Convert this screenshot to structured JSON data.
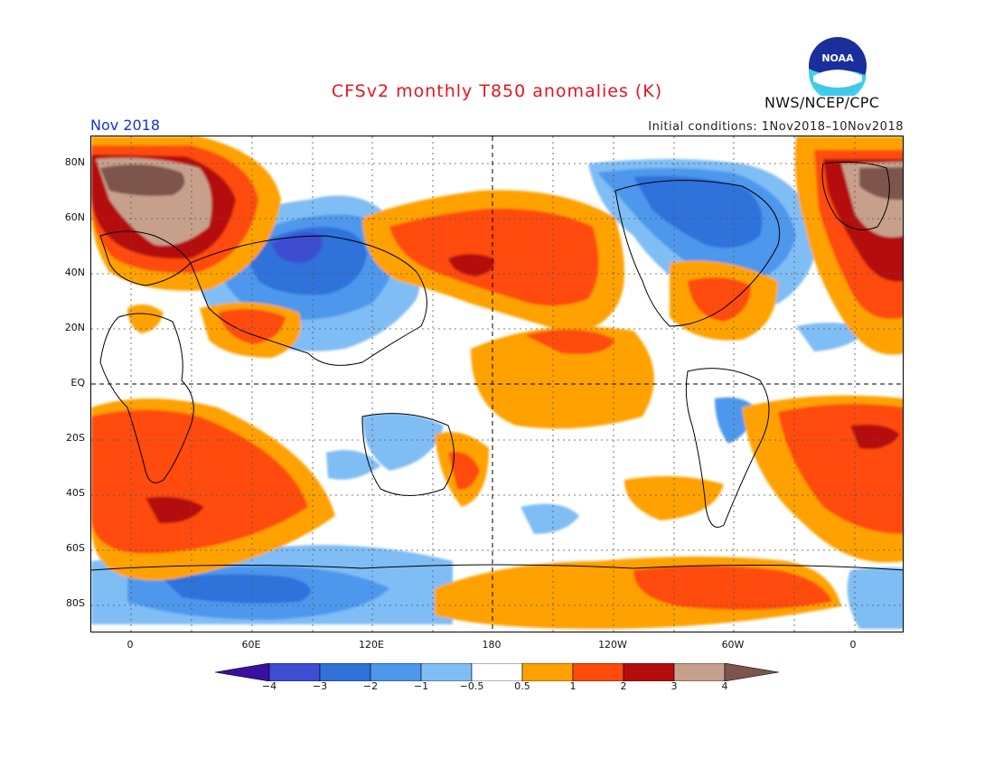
{
  "header": {
    "title": "CFSv2 monthly T850 anomalies (K)",
    "month": "Nov 2018",
    "initial_conditions": "Initial conditions: 1Nov2018–10Nov2018",
    "agency": "NWS/NCEP/CPC",
    "logo_text": "NOAA"
  },
  "map": {
    "projection": "cylindrical",
    "lon_range": [
      -20,
      380
    ],
    "lat_range": [
      -90,
      90
    ],
    "lat_labels": [
      "80N",
      "60N",
      "40N",
      "20N",
      "EQ",
      "20S",
      "40S",
      "60S",
      "80S"
    ],
    "lon_labels": [
      "0",
      "60E",
      "120E",
      "180",
      "120W",
      "60W",
      "0"
    ],
    "grid": "dotted, 30-degree spacing",
    "reference_lines": [
      "Equator",
      "180"
    ]
  },
  "colorbar": {
    "labels": [
      "−4",
      "−3",
      "−2",
      "−1",
      "−0.5",
      "0.5",
      "1",
      "2",
      "3",
      "4"
    ],
    "colors": [
      "#3a10a0",
      "#3e4ed2",
      "#2f72da",
      "#4d98ec",
      "#7fbdf5",
      "#ffffff",
      "#ffa200",
      "#ff4b0c",
      "#b50d0d",
      "#c7a08c",
      "#7d554c"
    ]
  },
  "legend_levels": {
    "neg_strong": "#3e4ed2",
    "neg_mod": "#2f72da",
    "neg_weak": "#4d98ec",
    "neg_slight": "#7fbdf5",
    "pos_slight": "#ffa200",
    "pos_mod": "#ff4b0c",
    "pos_strong": "#b50d0d",
    "pos_vstrong": "#c7a08c",
    "pos_extreme": "#7d554c"
  }
}
